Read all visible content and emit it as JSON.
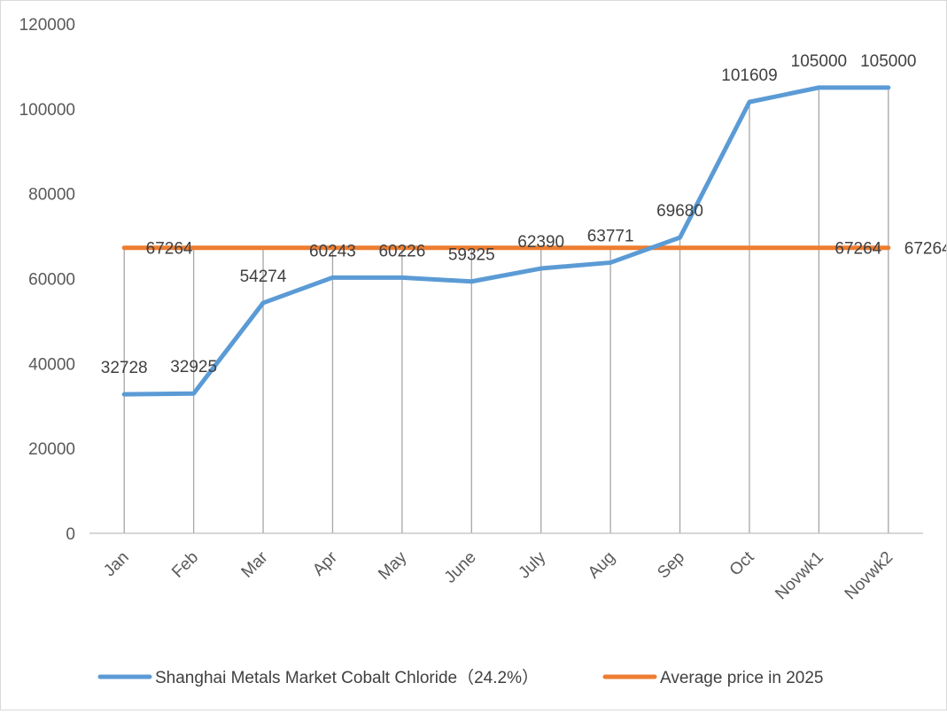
{
  "chart_data": {
    "type": "line",
    "title": "",
    "xlabel": "",
    "ylabel": "",
    "ylim": [
      0,
      120000
    ],
    "yticks": [
      0,
      20000,
      40000,
      60000,
      80000,
      100000,
      120000
    ],
    "categories": [
      "Jan",
      "Feb",
      "Mar",
      "Apr",
      "May",
      "June",
      "July",
      "Aug",
      "Sep",
      "Oct",
      "Novwk1",
      "Novwk2"
    ],
    "series": [
      {
        "name": "Shanghai Metals Market Cobalt Chloride（24.2%）",
        "color": "#5b9bd5",
        "values": [
          32728,
          32925,
          54274,
          60243,
          60226,
          59325,
          62390,
          63771,
          69680,
          101609,
          105000,
          105000
        ],
        "labels_shown": [
          true,
          true,
          true,
          true,
          true,
          true,
          true,
          true,
          true,
          true,
          true,
          true
        ]
      },
      {
        "name": "Average price in 2025",
        "color": "#ed7d31",
        "values": [
          67264,
          67264,
          67264,
          67264,
          67264,
          67264,
          67264,
          67264,
          67264,
          67264,
          67264,
          67264
        ],
        "labels_shown": [
          false,
          true,
          false,
          false,
          false,
          false,
          false,
          false,
          false,
          false,
          true,
          true
        ]
      }
    ],
    "drop_lines": true,
    "legend": "bottom"
  }
}
